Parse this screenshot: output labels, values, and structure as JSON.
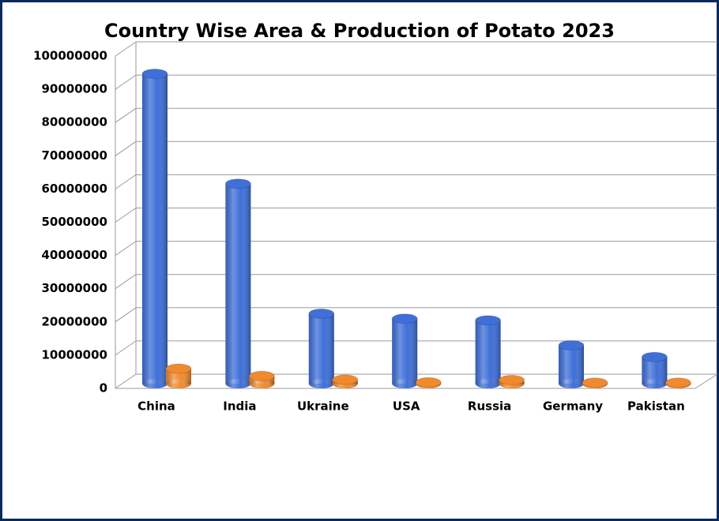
{
  "chart_data": {
    "type": "bar3d",
    "title": "Country Wise Area & Production of Potato 2023",
    "categories": [
      "China",
      "India",
      "Ukraine",
      "USA",
      "Russia",
      "Germany",
      "Pakistan"
    ],
    "series": [
      {
        "color": "#3f6fd8",
        "values": [
          93000000,
          60000000,
          21000000,
          19500000,
          19000000,
          11500000,
          8000000
        ]
      },
      {
        "color": "#f08a2e",
        "values": [
          4500000,
          2300000,
          1200000,
          400000,
          1100000,
          300000,
          300000
        ]
      }
    ],
    "ylim": [
      0,
      100000000
    ],
    "yticks": [
      0,
      10000000,
      20000000,
      30000000,
      40000000,
      50000000,
      60000000,
      70000000,
      80000000,
      90000000,
      100000000
    ],
    "grid": true
  }
}
